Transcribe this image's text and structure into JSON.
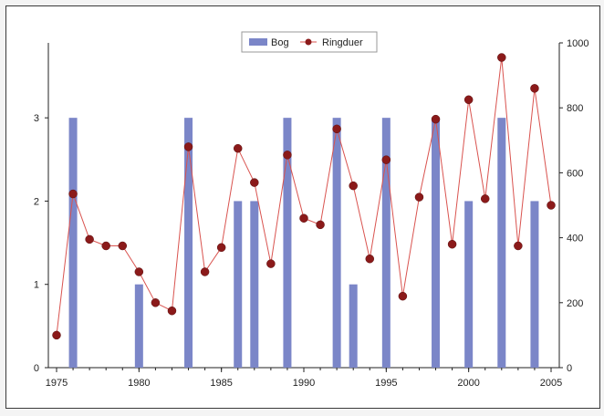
{
  "chart_data": {
    "type": "bar",
    "title": "",
    "xlabel": "",
    "ylabel": "",
    "x": [
      1975,
      1976,
      1977,
      1978,
      1979,
      1980,
      1981,
      1982,
      1983,
      1984,
      1985,
      1986,
      1987,
      1988,
      1989,
      1990,
      1991,
      1992,
      1993,
      1994,
      1995,
      1996,
      1997,
      1998,
      1999,
      2000,
      2001,
      2002,
      2003,
      2004,
      2005
    ],
    "xticks": [
      1975,
      1980,
      1985,
      1990,
      1995,
      2000,
      2005
    ],
    "xlim": [
      1975,
      2005
    ],
    "y_left_ticks": [
      0,
      1,
      2,
      3
    ],
    "y_left_lim": [
      0,
      3.9
    ],
    "y_right_ticks": [
      0,
      200,
      400,
      600,
      800,
      1000
    ],
    "y_right_lim": [
      0,
      1000
    ],
    "grid": false,
    "legend_position": "top-center",
    "series": [
      {
        "name": "Bog",
        "type": "bar",
        "axis": "left",
        "color": "#7b86c8",
        "points": [
          [
            1976,
            3
          ],
          [
            1980,
            1
          ],
          [
            1983,
            3
          ],
          [
            1986,
            2
          ],
          [
            1987,
            2
          ],
          [
            1989,
            3
          ],
          [
            1992,
            3
          ],
          [
            1993,
            1
          ],
          [
            1995,
            3
          ],
          [
            1998,
            3
          ],
          [
            2000,
            2
          ],
          [
            2002,
            3
          ],
          [
            2004,
            2
          ]
        ]
      },
      {
        "name": "Ringduer",
        "type": "line",
        "axis": "right",
        "color": "#8b1a1a",
        "line_color": "#d9534f",
        "points": [
          [
            1975,
            100
          ],
          [
            1976,
            535
          ],
          [
            1977,
            395
          ],
          [
            1978,
            375
          ],
          [
            1979,
            375
          ],
          [
            1980,
            295
          ],
          [
            1981,
            200
          ],
          [
            1982,
            175
          ],
          [
            1983,
            680
          ],
          [
            1984,
            295
          ],
          [
            1985,
            370
          ],
          [
            1986,
            675
          ],
          [
            1987,
            570
          ],
          [
            1988,
            320
          ],
          [
            1989,
            655
          ],
          [
            1990,
            460
          ],
          [
            1991,
            440
          ],
          [
            1992,
            735
          ],
          [
            1993,
            560
          ],
          [
            1994,
            335
          ],
          [
            1995,
            640
          ],
          [
            1996,
            220
          ],
          [
            1997,
            525
          ],
          [
            1998,
            765
          ],
          [
            1999,
            380
          ],
          [
            2000,
            825
          ],
          [
            2001,
            520
          ],
          [
            2002,
            955
          ],
          [
            2003,
            375
          ],
          [
            2004,
            860
          ],
          [
            2005,
            500
          ]
        ]
      }
    ]
  }
}
